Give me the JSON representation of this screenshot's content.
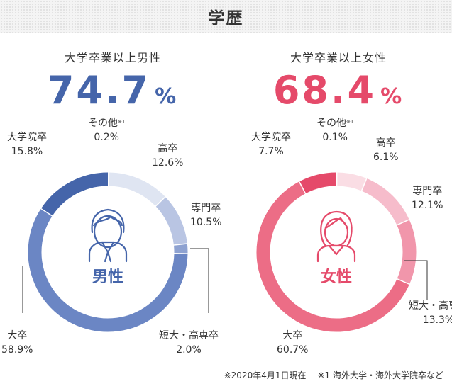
{
  "header": {
    "title": "学歴"
  },
  "chart_data": [
    {
      "type": "pie",
      "donut": true,
      "title": "大学卒業以上男性",
      "highlight_value": "74.7",
      "highlight_unit": "%",
      "center_label": "男性",
      "center_icon": "man-icon",
      "categories": [
        "その他",
        "高卒",
        "専門卒",
        "短大・高専卒",
        "大卒",
        "大学院卒"
      ],
      "values": [
        0.2,
        12.6,
        10.5,
        2.0,
        58.9,
        15.8
      ],
      "value_labels": [
        "0.2%",
        "12.6%",
        "10.5%",
        "2.0%",
        "58.9%",
        "15.8%"
      ],
      "footnote_marks": [
        "※1",
        "",
        "",
        "",
        "",
        ""
      ],
      "colors": [
        "#9fb0d8",
        "#dfe5f2",
        "#b9c5e3",
        "#8ea2d1",
        "#6b86c4",
        "#4565aa"
      ],
      "accent_color": "#4565aa"
    },
    {
      "type": "pie",
      "donut": true,
      "title": "大学卒業以上女性",
      "highlight_value": "68.4",
      "highlight_unit": "%",
      "center_label": "女性",
      "center_icon": "woman-icon",
      "categories": [
        "その他",
        "高卒",
        "専門卒",
        "短大・高専卒",
        "大卒",
        "大学院卒"
      ],
      "values": [
        0.1,
        6.1,
        12.1,
        13.3,
        60.7,
        7.7
      ],
      "value_labels": [
        "0.1%",
        "6.1%",
        "12.1%",
        "13.3%",
        "60.7%",
        "7.7%"
      ],
      "footnote_marks": [
        "※1",
        "",
        "",
        "",
        "",
        ""
      ],
      "colors": [
        "#f6b3c2",
        "#fadde4",
        "#f6bccb",
        "#f196ab",
        "#ec6d86",
        "#e54a6a"
      ],
      "accent_color": "#e54a6a"
    }
  ],
  "footnote": {
    "date_note": "※2020年4月1日現在",
    "note1": "※1 海外大学・海外大学院卒など"
  }
}
